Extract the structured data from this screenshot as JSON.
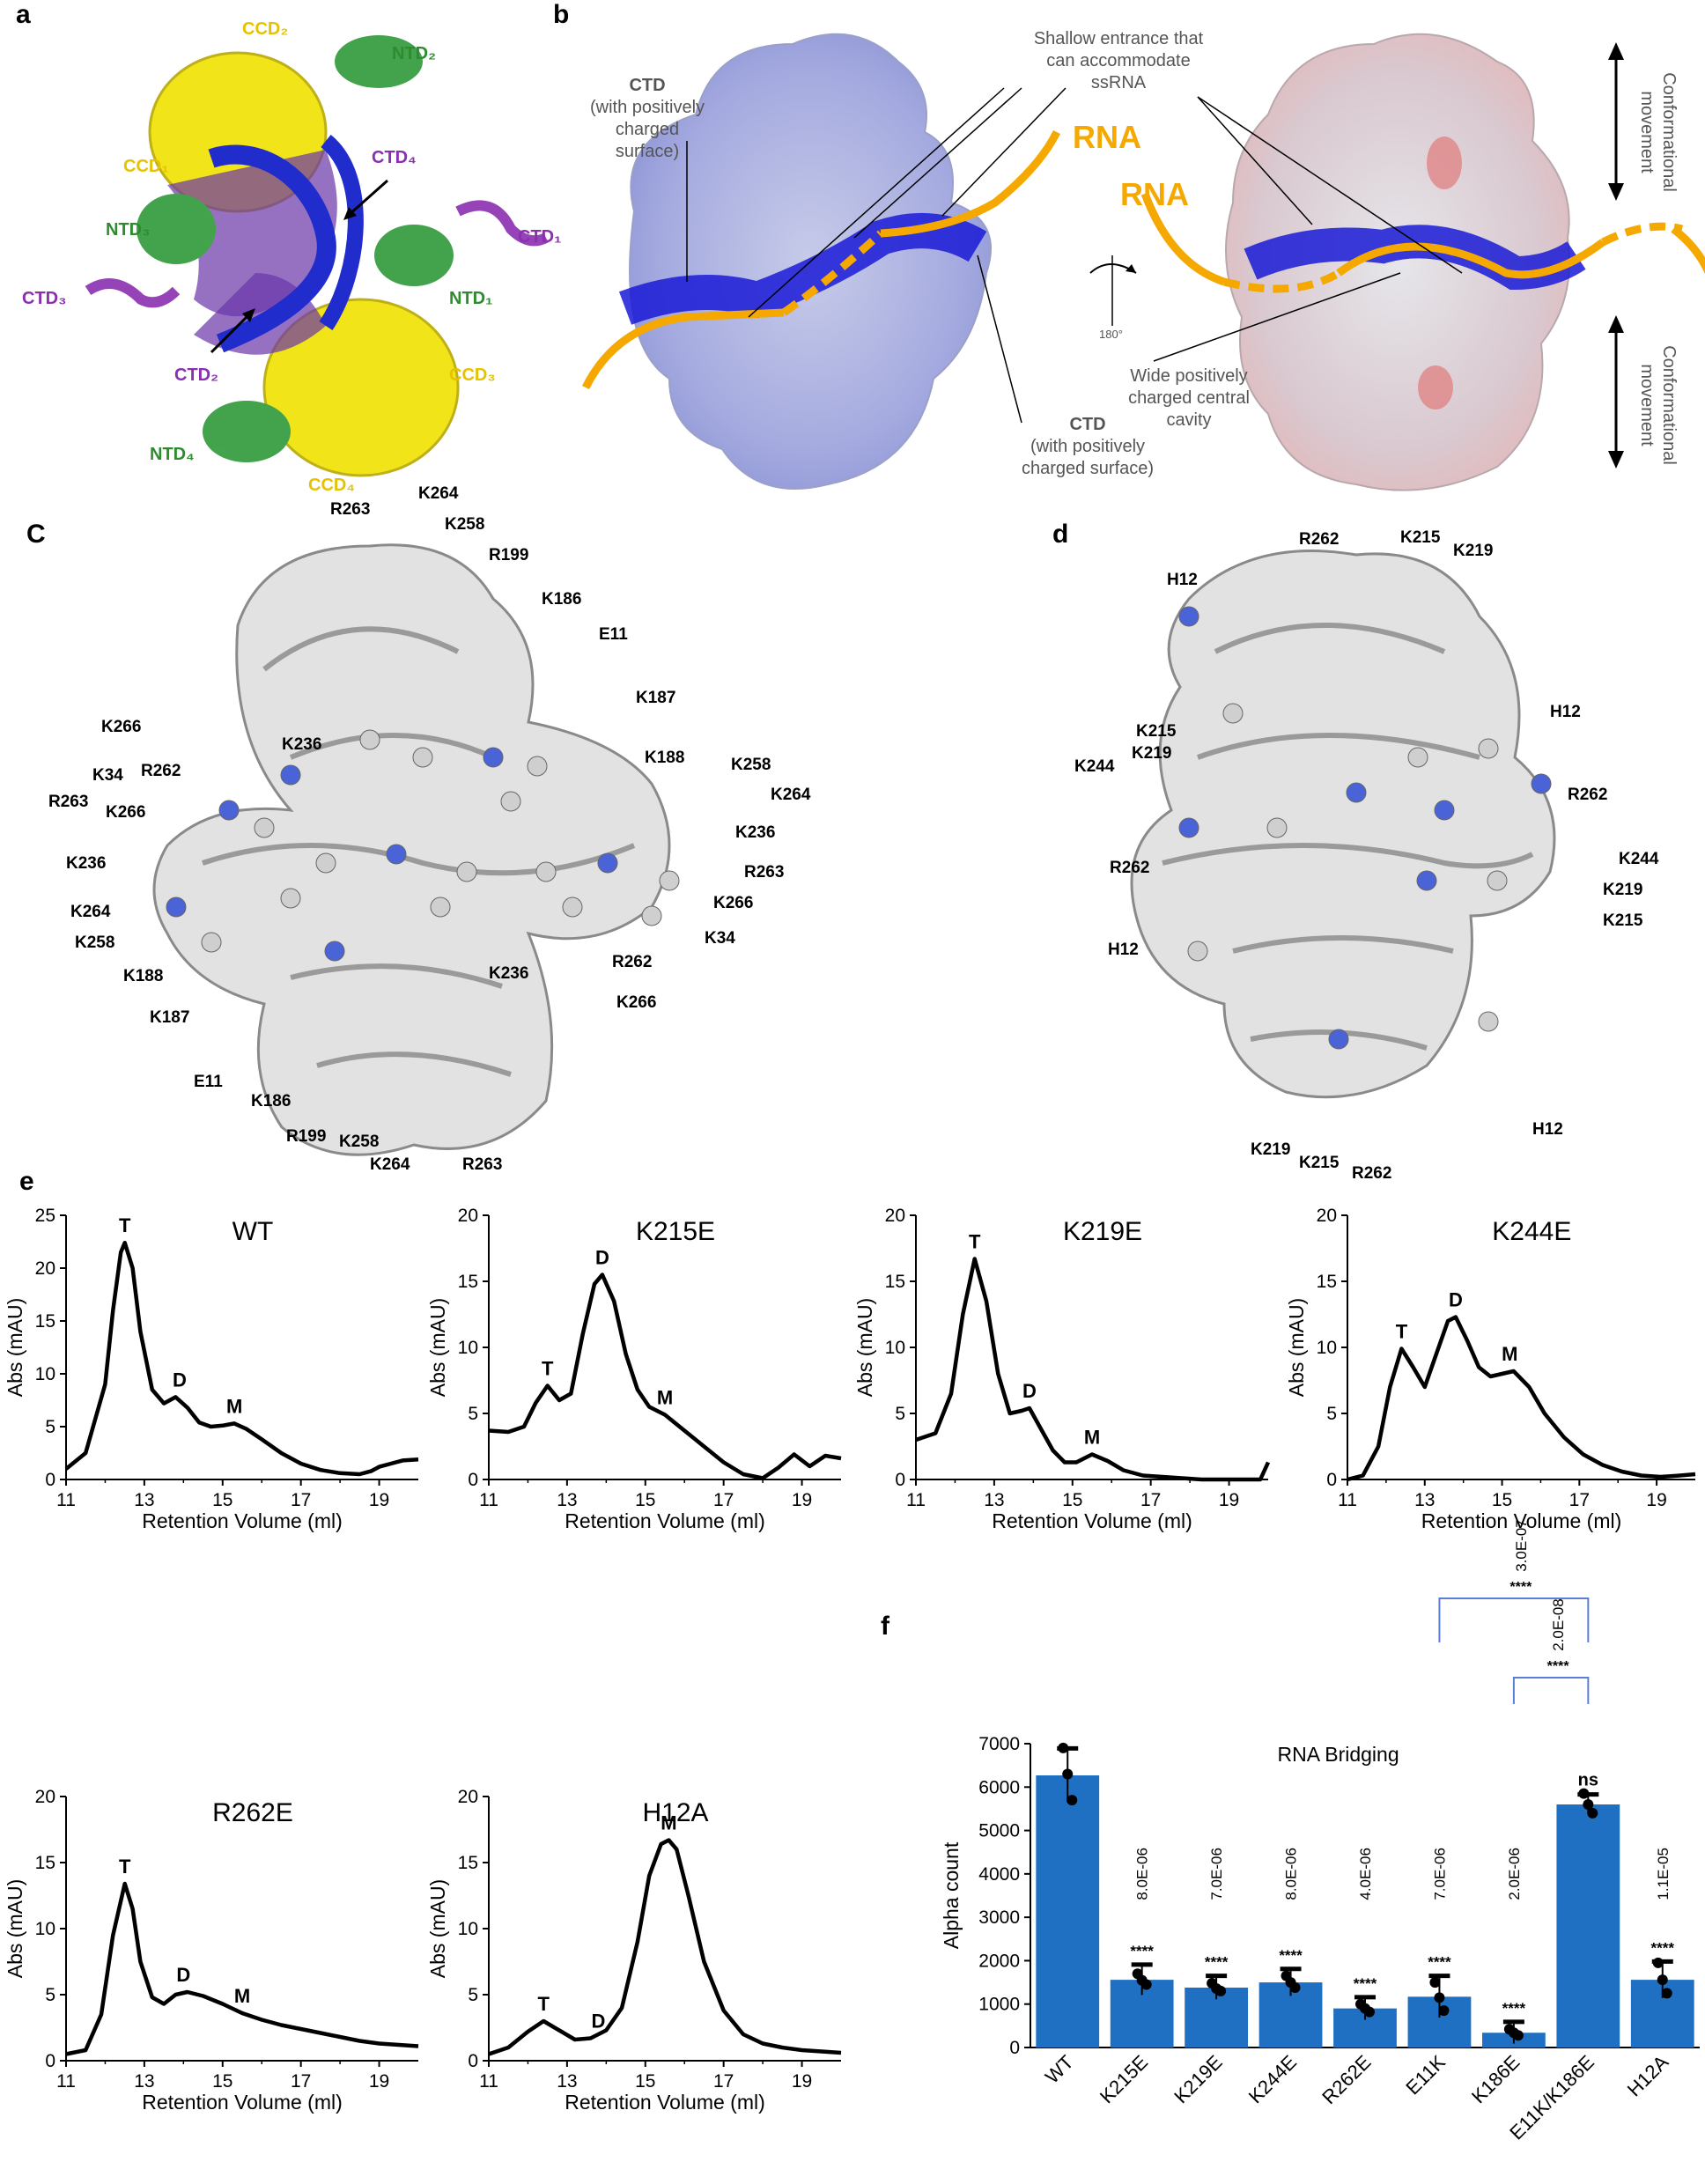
{
  "panels": {
    "a": {
      "letter": "a",
      "labels": [
        {
          "text": "CCD₂",
          "color": "#e6c200"
        },
        {
          "text": "NTD₂",
          "color": "#2e8b2e"
        },
        {
          "text": "CCD₁",
          "color": "#e6c200"
        },
        {
          "text": "CTD₄",
          "color": "#8a2fb0"
        },
        {
          "text": "NTD₃",
          "color": "#2e8b2e"
        },
        {
          "text": "CTD₁",
          "color": "#8a2fb0"
        },
        {
          "text": "NTD₁",
          "color": "#2e8b2e"
        },
        {
          "text": "CTD₃",
          "color": "#8a2fb0"
        },
        {
          "text": "CTD₂",
          "color": "#8a2fb0"
        },
        {
          "text": "CCD₃",
          "color": "#e6c200"
        },
        {
          "text": "NTD₄",
          "color": "#2e8b2e"
        },
        {
          "text": "CCD₄",
          "color": "#e6c200"
        }
      ]
    },
    "b": {
      "letter": "b",
      "ctd_left_title": "CTD",
      "ctd_left_sub": [
        "(with positively",
        "charged",
        "surface)"
      ],
      "shallow": [
        "Shallow entrance that",
        "can accommodate",
        "ssRNA"
      ],
      "rna_left": "RNA",
      "rna_right": "RNA",
      "ctd_bottom_title": "CTD",
      "ctd_bottom_sub": [
        "(with positively",
        "charged surface)"
      ],
      "rotation": "180°",
      "wide": [
        "Wide positively",
        "charged central",
        "cavity"
      ],
      "conf_top": [
        "Conformational",
        "movement"
      ],
      "conf_bottom": [
        "Conformational",
        "movement"
      ]
    },
    "c": {
      "letter": "C",
      "residues": [
        "R263",
        "K264",
        "K258",
        "R199",
        "K186",
        "E11",
        "K187",
        "K266",
        "K236",
        "K34",
        "R262",
        "K188",
        "K258",
        "R263",
        "K266",
        "K264",
        "K236",
        "K236",
        "R263",
        "K264",
        "K266",
        "K258",
        "K34",
        "K188",
        "R262",
        "K187",
        "K236",
        "K266",
        "E11",
        "K186",
        "R199",
        "K258",
        "K264",
        "R263"
      ]
    },
    "d": {
      "letter": "d",
      "residues": [
        "R262",
        "K215",
        "K219",
        "H12",
        "H12",
        "K215",
        "K219",
        "K244",
        "R262",
        "R262",
        "K244",
        "K219",
        "K215",
        "H12",
        "H12",
        "K219",
        "K215",
        "R262"
      ]
    },
    "e": {
      "letter": "e"
    },
    "f": {
      "letter": "f"
    }
  },
  "chart_data": [
    {
      "type": "line",
      "title": "WT",
      "xlabel": "Retention Volume (ml)",
      "ylabel": "Abs (mAU)",
      "xlim": [
        11,
        20
      ],
      "ylim": [
        0,
        25
      ],
      "xticks": [
        11,
        13,
        15,
        17,
        19
      ],
      "yticks": [
        0,
        5,
        10,
        15,
        20,
        25
      ],
      "x": [
        11,
        11.5,
        12,
        12.2,
        12.4,
        12.5,
        12.7,
        12.9,
        13.2,
        13.5,
        13.8,
        14.1,
        14.4,
        14.7,
        15.0,
        15.3,
        15.6,
        16.0,
        16.5,
        17.0,
        17.5,
        18.0,
        18.5,
        18.8,
        19.0,
        19.3,
        19.6,
        20
      ],
      "y": [
        1.0,
        2.5,
        9.0,
        16.0,
        21.5,
        22.4,
        20.0,
        14.0,
        8.5,
        7.2,
        7.8,
        6.8,
        5.4,
        5.0,
        5.1,
        5.3,
        4.8,
        3.8,
        2.5,
        1.5,
        0.9,
        0.6,
        0.5,
        0.8,
        1.2,
        1.5,
        1.8,
        1.9
      ],
      "peak_labels": [
        {
          "text": "T",
          "x": 12.5,
          "y": 22.4
        },
        {
          "text": "D",
          "x": 13.9,
          "y": 7.8
        },
        {
          "text": "M",
          "x": 15.3,
          "y": 5.3
        }
      ]
    },
    {
      "type": "line",
      "title": "K215E",
      "xlabel": "Retention Volume (ml)",
      "ylabel": "Abs (mAU)",
      "xlim": [
        11,
        20
      ],
      "ylim": [
        0,
        20
      ],
      "xticks": [
        11,
        13,
        15,
        17,
        19
      ],
      "yticks": [
        0,
        5,
        10,
        15,
        20
      ],
      "x": [
        11,
        11.5,
        11.9,
        12.2,
        12.5,
        12.8,
        13.1,
        13.4,
        13.7,
        13.9,
        14.2,
        14.5,
        14.8,
        15.1,
        15.5,
        16.0,
        16.5,
        17.0,
        17.5,
        18.0,
        18.4,
        18.8,
        19.2,
        19.6,
        20
      ],
      "y": [
        3.7,
        3.6,
        4.0,
        5.8,
        7.1,
        6.0,
        6.5,
        11.0,
        14.8,
        15.5,
        13.5,
        9.5,
        6.8,
        5.5,
        4.9,
        3.7,
        2.5,
        1.3,
        0.4,
        0.1,
        0.9,
        1.9,
        1.0,
        1.8,
        1.6
      ],
      "peak_labels": [
        {
          "text": "T",
          "x": 12.5,
          "y": 7.1
        },
        {
          "text": "D",
          "x": 13.9,
          "y": 15.5
        },
        {
          "text": "M",
          "x": 15.5,
          "y": 4.9
        }
      ]
    },
    {
      "type": "line",
      "title": "K219E",
      "xlabel": "Retention Volume (ml)",
      "ylabel": "Abs (mAU)",
      "xlim": [
        11,
        20
      ],
      "ylim": [
        0,
        20
      ],
      "xticks": [
        11,
        13,
        15,
        17,
        19
      ],
      "yticks": [
        0,
        5,
        10,
        15,
        20
      ],
      "x": [
        11,
        11.5,
        11.9,
        12.2,
        12.5,
        12.8,
        13.1,
        13.4,
        13.7,
        13.9,
        14.2,
        14.5,
        14.8,
        15.1,
        15.5,
        15.9,
        16.3,
        16.8,
        17.3,
        17.8,
        18.3,
        18.8,
        19.3,
        19.8,
        20
      ],
      "y": [
        3.0,
        3.5,
        6.5,
        12.5,
        16.7,
        13.5,
        8.0,
        5.0,
        5.2,
        5.4,
        3.8,
        2.2,
        1.3,
        1.3,
        1.9,
        1.4,
        0.7,
        0.3,
        0.2,
        0.1,
        0.0,
        0.0,
        0.0,
        0.0,
        1.3
      ],
      "peak_labels": [
        {
          "text": "T",
          "x": 12.5,
          "y": 16.7
        },
        {
          "text": "D",
          "x": 13.9,
          "y": 5.4
        },
        {
          "text": "M",
          "x": 15.5,
          "y": 1.9
        }
      ]
    },
    {
      "type": "line",
      "title": "K244E",
      "xlabel": "Retention Volume (ml)",
      "ylabel": "Abs (mAU)",
      "xlim": [
        11,
        20
      ],
      "ylim": [
        0,
        20
      ],
      "xticks": [
        11,
        13,
        15,
        17,
        19
      ],
      "yticks": [
        0,
        5,
        10,
        15,
        20
      ],
      "x": [
        11,
        11.4,
        11.8,
        12.1,
        12.4,
        12.7,
        13.0,
        13.3,
        13.6,
        13.8,
        14.1,
        14.4,
        14.7,
        15.0,
        15.3,
        15.7,
        16.1,
        16.6,
        17.1,
        17.6,
        18.1,
        18.6,
        19.1,
        19.6,
        20
      ],
      "y": [
        0.0,
        0.3,
        2.5,
        7.0,
        9.9,
        8.5,
        7.0,
        9.5,
        12.0,
        12.3,
        10.5,
        8.5,
        7.8,
        8.0,
        8.2,
        7.0,
        5.0,
        3.2,
        1.9,
        1.1,
        0.6,
        0.3,
        0.2,
        0.3,
        0.4
      ],
      "peak_labels": [
        {
          "text": "T",
          "x": 12.4,
          "y": 9.9
        },
        {
          "text": "D",
          "x": 13.8,
          "y": 12.3
        },
        {
          "text": "M",
          "x": 15.2,
          "y": 8.2
        }
      ]
    },
    {
      "type": "line",
      "title": "R262E",
      "xlabel": "Retention Volume (ml)",
      "ylabel": "Abs (mAU)",
      "xlim": [
        11,
        20
      ],
      "ylim": [
        0,
        20
      ],
      "xticks": [
        11,
        13,
        15,
        17,
        19
      ],
      "yticks": [
        0,
        5,
        10,
        15,
        20
      ],
      "x": [
        11,
        11.5,
        11.9,
        12.2,
        12.5,
        12.7,
        12.9,
        13.2,
        13.5,
        13.8,
        14.1,
        14.5,
        15.0,
        15.5,
        16.0,
        16.5,
        17.0,
        17.5,
        18.0,
        18.5,
        19.0,
        19.5,
        20
      ],
      "y": [
        0.5,
        0.8,
        3.5,
        9.5,
        13.4,
        11.5,
        7.5,
        4.8,
        4.3,
        5.0,
        5.2,
        4.9,
        4.3,
        3.6,
        3.1,
        2.7,
        2.4,
        2.1,
        1.8,
        1.5,
        1.3,
        1.2,
        1.1
      ],
      "peak_labels": [
        {
          "text": "T",
          "x": 12.5,
          "y": 13.4
        },
        {
          "text": "D",
          "x": 14.0,
          "y": 5.2
        },
        {
          "text": "M",
          "x": 15.5,
          "y": 3.6
        }
      ]
    },
    {
      "type": "line",
      "title": "H12A",
      "xlabel": "Retention Volume (ml)",
      "ylabel": "Abs (mAU)",
      "xlim": [
        11,
        20
      ],
      "ylim": [
        0,
        20
      ],
      "xticks": [
        11,
        13,
        15,
        17,
        19
      ],
      "yticks": [
        0,
        5,
        10,
        15,
        20
      ],
      "x": [
        11,
        11.5,
        12.0,
        12.4,
        12.8,
        13.2,
        13.6,
        14.0,
        14.4,
        14.8,
        15.1,
        15.4,
        15.6,
        15.8,
        16.1,
        16.5,
        17.0,
        17.5,
        18.0,
        18.5,
        19.0,
        19.5,
        20
      ],
      "y": [
        0.5,
        1.0,
        2.2,
        3.0,
        2.3,
        1.6,
        1.7,
        2.3,
        4.0,
        9.0,
        14.0,
        16.4,
        16.7,
        16.0,
        12.5,
        7.5,
        3.8,
        2.0,
        1.3,
        1.0,
        0.8,
        0.7,
        0.6
      ],
      "peak_labels": [
        {
          "text": "T",
          "x": 12.4,
          "y": 3.0
        },
        {
          "text": "D",
          "x": 13.8,
          "y": 1.7
        },
        {
          "text": "M",
          "x": 15.6,
          "y": 16.7
        }
      ]
    },
    {
      "type": "bar",
      "title": "RNA Bridging",
      "ylabel": "Alpha count",
      "ylim": [
        0,
        7000
      ],
      "yticks": [
        0,
        1000,
        2000,
        3000,
        4000,
        5000,
        6000,
        7000
      ],
      "categories": [
        "WT",
        "K215E",
        "K219E",
        "K244E",
        "R262E",
        "E11K",
        "K186E",
        "E11K/K186E",
        "H12A"
      ],
      "values": [
        6270,
        1560,
        1380,
        1500,
        900,
        1170,
        340,
        5600,
        1560
      ],
      "errors": [
        620,
        350,
        270,
        310,
        260,
        480,
        250,
        230,
        420
      ],
      "points": [
        [
          6900,
          6300,
          5700
        ],
        [
          1700,
          1550,
          1450
        ],
        [
          1480,
          1360,
          1300
        ],
        [
          1650,
          1500,
          1380
        ],
        [
          1000,
          900,
          820
        ],
        [
          1500,
          1150,
          850
        ],
        [
          420,
          340,
          280
        ],
        [
          5850,
          5600,
          5400
        ],
        [
          1950,
          1560,
          1250
        ]
      ],
      "pvalues": [
        "",
        "8.0E-06",
        "7.0E-06",
        "8.0E-06",
        "4.0E-06",
        "7.0E-06",
        "2.0E-06",
        "",
        "1.1E-05"
      ],
      "stars": [
        "",
        "****",
        "****",
        "****",
        "****",
        "****",
        "****",
        "ns",
        "****"
      ],
      "brackets": [
        {
          "from": "K186E",
          "to": "E11K/K186E",
          "pvalue": "2.0E-08",
          "stars": "****"
        },
        {
          "from": "E11K",
          "to": "E11K/K186E",
          "pvalue": "3.0E-07",
          "stars": "****"
        }
      ],
      "bar_color": "#1f6fc2"
    }
  ]
}
